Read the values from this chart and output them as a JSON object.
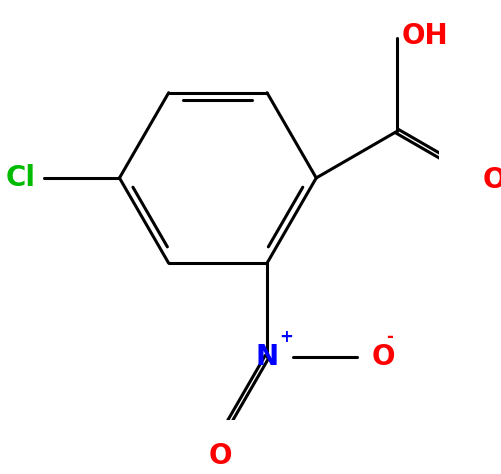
{
  "background_color": "#ffffff",
  "bond_color": "#000000",
  "bond_width": 2.2,
  "figsize": [
    5.01,
    4.74
  ],
  "dpi": 100,
  "cl_label": "Cl",
  "cl_color": "#00bb00",
  "cl_fontsize": 20,
  "oh_label": "OH",
  "oh_color": "#ff0000",
  "oh_fontsize": 20,
  "o_carbonyl_label": "O",
  "o_carbonyl_color": "#ff0000",
  "o_carbonyl_fontsize": 20,
  "n_label": "N",
  "n_color": "#0000ff",
  "n_fontsize": 20,
  "nplus_label": "+",
  "nplus_fontsize": 12,
  "o_nitro_label": "O",
  "o_nitro_color": "#ff0000",
  "o_nitro_fontsize": 20,
  "ominus_label": "-",
  "ominus_fontsize": 12,
  "o_nitroso_label": "O",
  "o_nitroso_color": "#ff0000",
  "o_nitroso_fontsize": 20
}
